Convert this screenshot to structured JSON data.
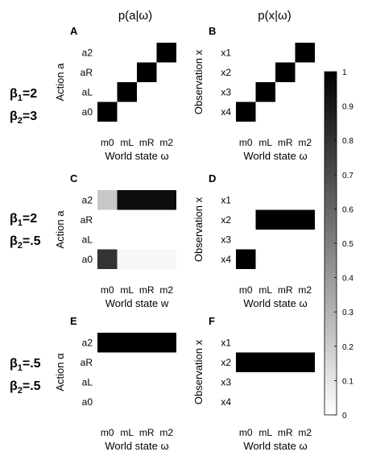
{
  "column_titles": [
    "p(a|ω)",
    "p(x|ω)"
  ],
  "row_labels": [
    {
      "b1": "2",
      "b2": "3"
    },
    {
      "b1": "2",
      "b2": ".5"
    },
    {
      "b1": ".5",
      "b2": ".5"
    }
  ],
  "beta_symbol": "β",
  "colorbar": {
    "ticks": [
      "0",
      "0.1",
      "0.2",
      "0.3",
      "0.4",
      "0.5",
      "0.6",
      "0.7",
      "0.8",
      "0.9",
      "1"
    ],
    "colormap": "gray-reversed",
    "range": [
      0,
      1
    ]
  },
  "chart_data": [
    {
      "type": "heatmap",
      "panel": "A",
      "x_categories": [
        "m0",
        "mL",
        "mR",
        "m2"
      ],
      "y_categories": [
        "a0",
        "aL",
        "aR",
        "a2"
      ],
      "xlabel": "World state ω",
      "ylabel": "Action a",
      "values": [
        [
          1,
          0,
          0,
          0
        ],
        [
          0,
          1,
          0,
          0
        ],
        [
          0,
          0,
          1,
          0
        ],
        [
          0,
          0,
          0,
          1
        ]
      ]
    },
    {
      "type": "heatmap",
      "panel": "B",
      "x_categories": [
        "m0",
        "mL",
        "mR",
        "m2"
      ],
      "y_categories": [
        "x4",
        "x3",
        "x2",
        "x1"
      ],
      "xlabel": "World state ω",
      "ylabel": "Observation x",
      "values": [
        [
          1,
          0,
          0,
          0
        ],
        [
          0,
          1,
          0,
          0
        ],
        [
          0,
          0,
          1,
          0
        ],
        [
          0,
          0,
          0,
          1
        ]
      ]
    },
    {
      "type": "heatmap",
      "panel": "C",
      "x_categories": [
        "m0",
        "mL",
        "mR",
        "m2"
      ],
      "y_categories": [
        "a0",
        "aL",
        "aR",
        "a2"
      ],
      "xlabel": "World state w",
      "ylabel": "Action a",
      "values": [
        [
          0.8,
          0.03,
          0.03,
          0.03
        ],
        [
          0,
          0,
          0,
          0
        ],
        [
          0,
          0,
          0,
          0
        ],
        [
          0.22,
          0.95,
          0.95,
          0.95
        ]
      ]
    },
    {
      "type": "heatmap",
      "panel": "D",
      "x_categories": [
        "m0",
        "mL",
        "mR",
        "m2"
      ],
      "y_categories": [
        "x4",
        "x3",
        "x2",
        "x1"
      ],
      "xlabel": "World state ω",
      "ylabel": "Observation x",
      "values": [
        [
          1,
          0,
          0,
          0
        ],
        [
          0,
          0,
          0,
          0
        ],
        [
          0,
          1,
          1,
          1
        ],
        [
          0,
          0,
          0,
          0
        ]
      ]
    },
    {
      "type": "heatmap",
      "panel": "E",
      "x_categories": [
        "m0",
        "mL",
        "mR",
        "m2"
      ],
      "y_categories": [
        "a0",
        "aL",
        "aR",
        "a2"
      ],
      "xlabel": "World state ω",
      "ylabel": "Action α",
      "values": [
        [
          0,
          0,
          0,
          0
        ],
        [
          0,
          0,
          0,
          0
        ],
        [
          0,
          0,
          0,
          0
        ],
        [
          1,
          1,
          1,
          1
        ]
      ]
    },
    {
      "type": "heatmap",
      "panel": "F",
      "x_categories": [
        "m0",
        "mL",
        "mR",
        "m2"
      ],
      "y_categories": [
        "x4",
        "x3",
        "x2",
        "x1"
      ],
      "xlabel": "World state ω",
      "ylabel": "Observation x",
      "values": [
        [
          0,
          0,
          0,
          0
        ],
        [
          0,
          0,
          0,
          0
        ],
        [
          1,
          1,
          1,
          1
        ],
        [
          0,
          0,
          0,
          0
        ]
      ]
    }
  ]
}
